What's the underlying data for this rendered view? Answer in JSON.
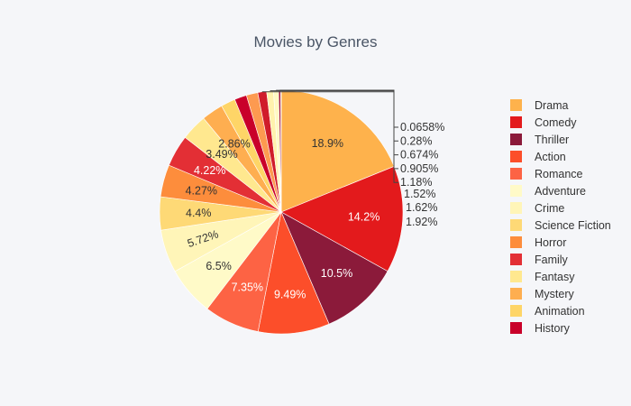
{
  "chart_data": {
    "type": "pie",
    "title": "Movies by Genres",
    "legend_position": "right",
    "slices": [
      {
        "label": "Drama",
        "percent": 18.9,
        "text": "18.9%",
        "color": "#feb24c"
      },
      {
        "label": "Comedy",
        "percent": 14.2,
        "text": "14.2%",
        "color": "#e31a1c"
      },
      {
        "label": "Thriller",
        "percent": 10.5,
        "text": "10.5%",
        "color": "#8b1a3a"
      },
      {
        "label": "Action",
        "percent": 9.49,
        "text": "9.49%",
        "color": "#fc4e2a"
      },
      {
        "label": "Romance",
        "percent": 7.35,
        "text": "7.35%",
        "color": "#fd6344"
      },
      {
        "label": "Adventure",
        "percent": 6.5,
        "text": "6.5%",
        "color": "#fffac8"
      },
      {
        "label": "Crime",
        "percent": 5.72,
        "text": "5.72%",
        "color": "#fff5b8"
      },
      {
        "label": "Science Fiction",
        "percent": 4.4,
        "text": "4.4%",
        "color": "#fed976"
      },
      {
        "label": "Horror",
        "percent": 4.27,
        "text": "4.27%",
        "color": "#fd8d3c"
      },
      {
        "label": "Family",
        "percent": 4.22,
        "text": "4.22%",
        "color": "#e32f35"
      },
      {
        "label": "Fantasy",
        "percent": 3.49,
        "text": "3.49%",
        "color": "#ffe88f"
      },
      {
        "label": "Mystery",
        "percent": 2.86,
        "text": "2.86%",
        "color": "#feae50"
      },
      {
        "label": "Animation",
        "percent": 1.92,
        "text": "1.92%",
        "color": "#fed567"
      },
      {
        "label": "History",
        "percent": 1.62,
        "text": "1.62%",
        "color": "#c9002a"
      },
      {
        "label": "",
        "percent": 1.52,
        "text": "1.52%",
        "color": "#fd9a50"
      },
      {
        "label": "",
        "percent": 1.18,
        "text": "1.18%",
        "color": "#d01c2a"
      },
      {
        "label": "",
        "percent": 0.905,
        "text": "0.905%",
        "color": "#fff2ad"
      },
      {
        "label": "",
        "percent": 0.674,
        "text": "0.674%",
        "color": "#fff9c2"
      },
      {
        "label": "",
        "percent": 0.28,
        "text": "0.28%",
        "color": "#a31838"
      },
      {
        "label": "",
        "percent": 0.0658,
        "text": "0.0658%",
        "color": "#f23a2a"
      }
    ]
  }
}
